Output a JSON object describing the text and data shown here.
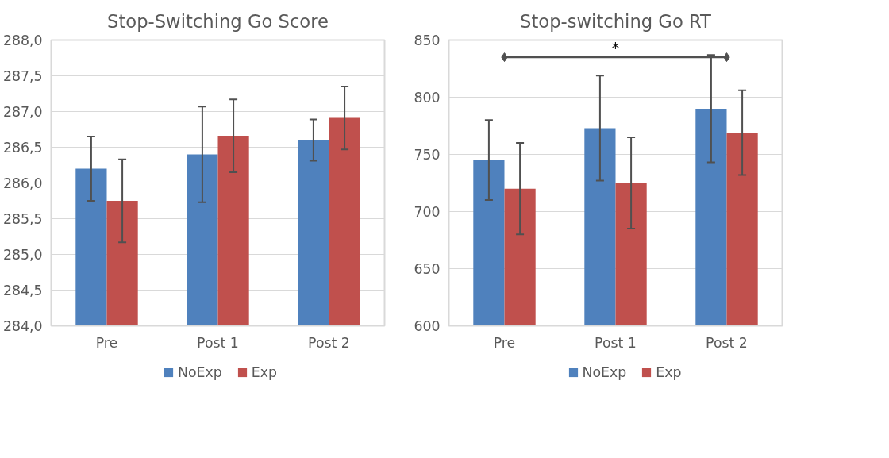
{
  "chart_data": [
    {
      "type": "bar",
      "title": "Stop-Switching Go Score",
      "categories": [
        "Pre",
        "Post 1",
        "Post 2"
      ],
      "series": [
        {
          "name": "NoExp",
          "color": "#4f81bd",
          "values": [
            286.2,
            286.4,
            286.6
          ],
          "errors": [
            0.45,
            0.67,
            0.29
          ]
        },
        {
          "name": "Exp",
          "color": "#c0504d",
          "values": [
            285.75,
            286.66,
            286.91
          ],
          "errors": [
            0.58,
            0.51,
            0.44
          ]
        }
      ],
      "ylim": [
        284,
        288
      ],
      "yticks": [
        {
          "value": 284,
          "label": "284,0"
        },
        {
          "value": 284.5,
          "label": "284,5"
        },
        {
          "value": 285,
          "label": "285,0"
        },
        {
          "value": 285.5,
          "label": "285,5"
        },
        {
          "value": 286,
          "label": "286,0"
        },
        {
          "value": 286.5,
          "label": "286,5"
        },
        {
          "value": 287,
          "label": "287,0"
        },
        {
          "value": 287.5,
          "label": "287,5"
        },
        {
          "value": 288,
          "label": "288,0"
        }
      ],
      "grid": "y",
      "legend": "bottom"
    },
    {
      "type": "bar",
      "title": "Stop-switching Go RT",
      "categories": [
        "Pre",
        "Post 1",
        "Post 2"
      ],
      "series": [
        {
          "name": "NoExp",
          "color": "#4f81bd",
          "values": [
            745,
            773,
            790
          ],
          "errors": [
            35,
            46,
            47
          ]
        },
        {
          "name": "Exp",
          "color": "#c0504d",
          "values": [
            720,
            725,
            769
          ],
          "errors": [
            40,
            40,
            37
          ]
        }
      ],
      "ylim": [
        600,
        850
      ],
      "yticks": [
        600,
        650,
        700,
        750,
        800,
        850
      ],
      "annotations": [
        "*"
      ],
      "grid": "y",
      "legend": "bottom"
    }
  ]
}
